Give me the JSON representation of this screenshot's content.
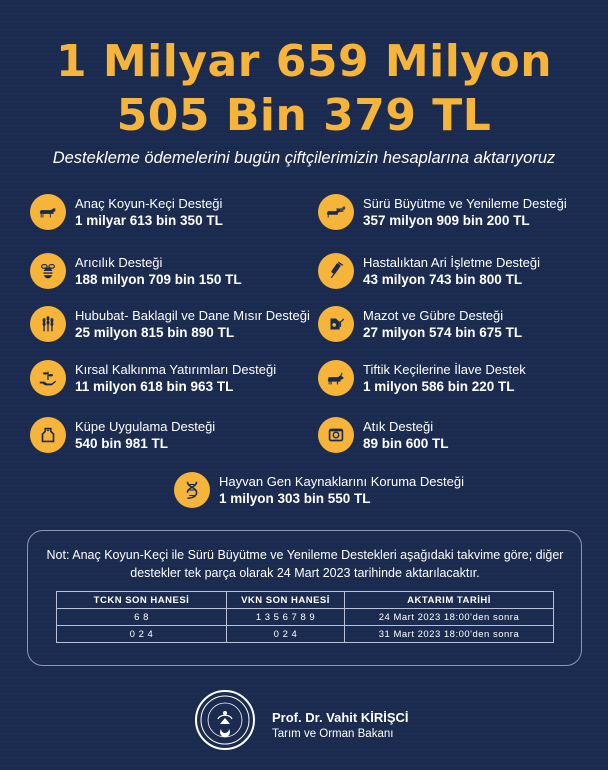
{
  "headline": {
    "line1": "1 Milyar 659 Milyon",
    "line2": "505 Bin 379 TL",
    "color": "#f6b53a"
  },
  "subtitle": "Destekleme ödemelerini bugün çiftçilerimizin hesaplarına aktarıyoruz",
  "supports_left": [
    {
      "label": "Anaç Koyun-Keçi Desteği",
      "amount": "1 milyar 613 bin 350 TL",
      "icon": "sheep-icon"
    },
    {
      "label": "Arıcılık Desteği",
      "amount": "188 milyon 709 bin 150 TL",
      "icon": "bee-icon"
    },
    {
      "label": "Hububat- Baklagil ve Dane Mısır Desteği",
      "amount": "25 milyon 815 bin 890 TL",
      "icon": "wheat-icon"
    },
    {
      "label": "Kırsal Kalkınma Yatırımları Desteği",
      "amount": "11 milyon 618 bin 963 TL",
      "icon": "hand-plant-icon"
    },
    {
      "label": "Küpe Uygulama Desteği",
      "amount": "540 bin 981 TL",
      "icon": "ear-tag-icon"
    }
  ],
  "supports_right": [
    {
      "label": "Sürü Büyütme ve Yenileme Desteği",
      "amount": "357 milyon 909 bin 200 TL",
      "icon": "herd-icon"
    },
    {
      "label": "Hastalıktan Ari İşletme Desteği",
      "amount": "43 milyon 743 bin 800 TL",
      "icon": "syringe-icon"
    },
    {
      "label": "Mazot ve Gübre Desteği",
      "amount": "27 milyon 574 bin 675 TL",
      "icon": "fuel-pump-icon"
    },
    {
      "label": "Tiftik Keçilerine İlave Destek",
      "amount": "1 milyon 586 bin 220 TL",
      "icon": "goat-icon"
    },
    {
      "label": "Atık Desteği",
      "amount": "89 bin 600 TL",
      "icon": "waste-icon"
    }
  ],
  "support_center": {
    "label": "Hayvan Gen Kaynaklarını Koruma Desteği",
    "amount": "1 milyon 303 bin 550 TL",
    "icon": "dna-icon"
  },
  "note": "Not: Anaç Koyun-Keçi ile Sürü Büyütme ve Yenileme Destekleri aşağıdaki takvime göre; diğer destekler tek parça olarak 24 Mart 2023 tarihinde aktarılacaktır.",
  "schedule": {
    "headers": [
      "TCKN SON HANESİ",
      "VKN SON HANESİ",
      "AKTARIM TARİHİ"
    ],
    "rows": [
      [
        "6 8",
        "1 3 5 6 7 8 9",
        "24 Mart 2023 18:00'den sonra"
      ],
      [
        "0 2 4",
        "0 2 4",
        "31 Mart 2023 18:00'den sonra"
      ]
    ]
  },
  "signature": {
    "name": "Prof. Dr. Vahit KİRİŞCİ",
    "title": "Tarım ve Orman Bakanı",
    "logo_icon": "ministry-seal-icon"
  }
}
